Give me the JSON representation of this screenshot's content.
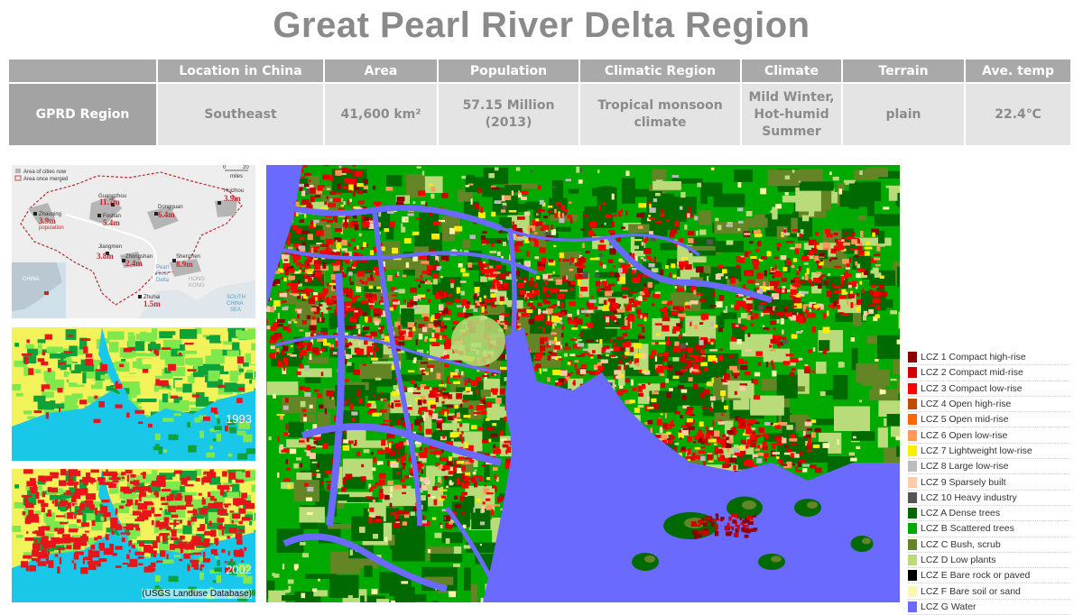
{
  "title": "Great Pearl River Delta Region",
  "table": {
    "headers": [
      "Location in China",
      "Area",
      "Population",
      "Climatic Region",
      "Climate",
      "Terrain",
      "Ave. temp"
    ],
    "row_label": "GPRD Region",
    "cells": [
      "Southeast",
      "41,600 km²",
      "57.15 Million (2013)",
      "Tropical monsoon climate",
      "Mild Winter, Hot-humid Summer",
      "plain",
      "22.4℃"
    ]
  },
  "inset_map": {
    "legend_now": "Area of cities now",
    "legend_merged": "Area once merged",
    "scale_0": "0",
    "scale_20": "20",
    "scale_unit": "miles",
    "china_label": "CHINA",
    "sea_label_1": "SOUTH",
    "sea_label_2": "CHINA",
    "sea_label_3": "SEA",
    "river_label_1": "Pearl",
    "river_label_2": "River",
    "river_label_3": "Delta",
    "hk_label_1": "HONG",
    "hk_label_2": "KONG",
    "population_word": "population",
    "cities": [
      {
        "name": "Zhaoqing",
        "pop": "3.9m"
      },
      {
        "name": "Guangzhou",
        "pop": "11.7m"
      },
      {
        "name": "Foshan",
        "pop": "5.4m"
      },
      {
        "name": "Dongguan",
        "pop": "6.4m"
      },
      {
        "name": "Huizhou",
        "pop": "3.9m"
      },
      {
        "name": "Jiangmen",
        "pop": "3.8m"
      },
      {
        "name": "Zhongshan",
        "pop": "2.4m"
      },
      {
        "name": "Shenzhen",
        "pop": "8.9m"
      },
      {
        "name": "Zhuhai",
        "pop": "1.5m"
      }
    ]
  },
  "landuse_1993": {
    "year": "1993"
  },
  "landuse_2002": {
    "year": "2002",
    "source": "(USGS Landuse Database)"
  },
  "lcz_legend": [
    {
      "label": "LCZ 1 Compact high-rise",
      "color": "#8c0000"
    },
    {
      "label": "LCZ 2 Compact mid-rise",
      "color": "#d10000"
    },
    {
      "label": "LCZ 3 Compact low-rise",
      "color": "#ff0000"
    },
    {
      "label": "LCZ 4 Open high-rise",
      "color": "#bf4d00"
    },
    {
      "label": "LCZ 5 Open mid-rise",
      "color": "#ff6600"
    },
    {
      "label": "LCZ 6 Open low-rise",
      "color": "#ff9955"
    },
    {
      "label": "LCZ 7 Lightweight low-rise",
      "color": "#faee05"
    },
    {
      "label": "LCZ 8 Large low-rise",
      "color": "#bcbcbc"
    },
    {
      "label": "LCZ 9 Sparsely built",
      "color": "#ffccaa"
    },
    {
      "label": "LCZ 10 Heavy industry",
      "color": "#555555"
    },
    {
      "label": "LCZ A Dense trees",
      "color": "#006a00"
    },
    {
      "label": "LCZ B Scattered trees",
      "color": "#00aa00"
    },
    {
      "label": "LCZ C Bush, scrub",
      "color": "#648525"
    },
    {
      "label": "LCZ D Low plants",
      "color": "#b9db79"
    },
    {
      "label": "LCZ E Bare rock or paved",
      "color": "#000000"
    },
    {
      "label": "LCZ F Bare soil or sand",
      "color": "#fbf7ae"
    },
    {
      "label": "LCZ G Water",
      "color": "#6a6aff"
    }
  ],
  "landuse_colors": {
    "water": "#19c7e8",
    "urban": "#e8141b",
    "forest": "#0fa13a",
    "grass": "#7ee84d",
    "crop": "#f2f25a"
  }
}
